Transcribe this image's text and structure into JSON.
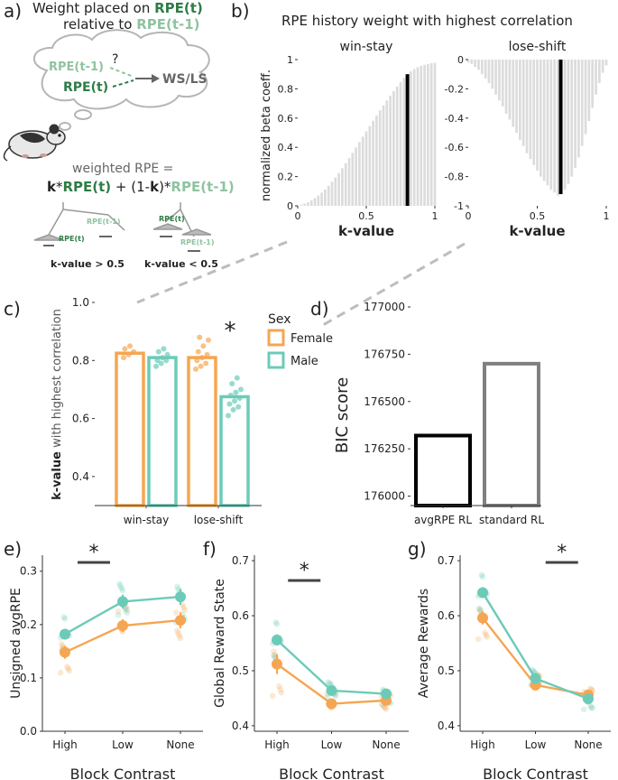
{
  "colors": {
    "female": "#F5A652",
    "male": "#6CCBB8",
    "history_bar": "#dcdcdc",
    "best_k": "#000000",
    "rpe_dark": "#2e7d45",
    "rpe_light": "#8fc3a0",
    "avg_rl": "#000000",
    "std_rl": "#808080"
  },
  "panel_a": {
    "label": "a)",
    "title_line1_pre": "Weight placed on ",
    "title_line1_hl": "RPE(t)",
    "title_line2_pre": "relative to ",
    "title_line2_hl": "RPE(t-1)",
    "cloud_rpe_t1": "RPE(t-1)",
    "cloud_question": "?",
    "cloud_rpe_t": "RPE(t)",
    "cloud_target": "WS/LS",
    "formula_line1": "weighted RPE =",
    "f_k1": "k",
    "f_star1": "*",
    "f_rpet": "RPE(t)",
    "f_mid": " + (1-",
    "f_k2": "k",
    "f_close": ")*",
    "f_rpet1": "RPE(t-1)",
    "scale_left_top": "RPE(t-1)",
    "scale_left_bottom": "RPE(t)",
    "scale_right_top": "RPE(t)",
    "scale_right_bottom": "RPE(t-1)",
    "k_gt": "k-value > 0.5",
    "k_lt": "k-value < 0.5"
  },
  "panel_b": {
    "label": "b)",
    "title": "RPE history weight with highest correlation",
    "ylabel": "normalized beta coeff."
  },
  "panel_c": {
    "label": "c)",
    "ylabel_bold": "k-value",
    "ylabel_rest": " with highest correlation",
    "legend_title": "Sex",
    "star": "*"
  },
  "panel_d": {
    "label": "d)",
    "ylabel": "BIC score"
  },
  "panel_e": {
    "label": "e)",
    "star": "*"
  },
  "panel_f": {
    "label": "f)",
    "star": "*"
  },
  "panel_g": {
    "label": "g)",
    "star": "*"
  },
  "chart_data": [
    {
      "id": "b_winstay",
      "type": "bar",
      "title": "win-stay",
      "xlabel": "k-value",
      "ylabel": "normalized beta coeff.",
      "xlim": [
        0,
        1
      ],
      "ylim": [
        0,
        1
      ],
      "xticks": [
        "0",
        "0.5",
        "1"
      ],
      "yticks": [
        "0",
        "0.2",
        "0.4",
        "0.6",
        "0.8",
        "1"
      ],
      "best_k": 0.8,
      "x": [
        0.0,
        0.025,
        0.05,
        0.075,
        0.1,
        0.125,
        0.15,
        0.175,
        0.2,
        0.225,
        0.25,
        0.275,
        0.3,
        0.325,
        0.35,
        0.375,
        0.4,
        0.425,
        0.45,
        0.475,
        0.5,
        0.525,
        0.55,
        0.575,
        0.6,
        0.625,
        0.65,
        0.675,
        0.7,
        0.725,
        0.75,
        0.775,
        0.8,
        0.825,
        0.85,
        0.875,
        0.9,
        0.925,
        0.95,
        0.975,
        1.0
      ],
      "values": [
        0.0,
        0.007,
        0.015,
        0.025,
        0.038,
        0.053,
        0.07,
        0.09,
        0.112,
        0.137,
        0.164,
        0.193,
        0.224,
        0.257,
        0.291,
        0.326,
        0.362,
        0.399,
        0.436,
        0.473,
        0.509,
        0.545,
        0.581,
        0.617,
        0.652,
        0.686,
        0.72,
        0.753,
        0.785,
        0.816,
        0.846,
        0.875,
        0.9,
        0.92,
        0.935,
        0.948,
        0.957,
        0.964,
        0.97,
        0.975,
        0.978
      ]
    },
    {
      "id": "b_loseshift",
      "type": "bar",
      "title": "lose-shift",
      "xlabel": "k-value",
      "ylabel": "",
      "xlim": [
        0,
        1
      ],
      "ylim": [
        -1,
        0
      ],
      "xticks": [
        "0",
        "0.5",
        "1"
      ],
      "yticks": [
        "0",
        "-0.2",
        "-0.4",
        "-0.6",
        "-0.8",
        "-1"
      ],
      "best_k": 0.67,
      "x": [
        0.0,
        0.025,
        0.05,
        0.075,
        0.1,
        0.125,
        0.15,
        0.175,
        0.2,
        0.225,
        0.25,
        0.275,
        0.3,
        0.325,
        0.35,
        0.375,
        0.4,
        0.425,
        0.45,
        0.475,
        0.5,
        0.525,
        0.55,
        0.575,
        0.6,
        0.625,
        0.65,
        0.675,
        0.7,
        0.725,
        0.75,
        0.775,
        0.8,
        0.825,
        0.85,
        0.875,
        0.9,
        0.925,
        0.95,
        0.975,
        1.0
      ],
      "values": [
        -0.02,
        -0.03,
        -0.05,
        -0.07,
        -0.1,
        -0.13,
        -0.16,
        -0.2,
        -0.24,
        -0.28,
        -0.32,
        -0.37,
        -0.41,
        -0.46,
        -0.5,
        -0.55,
        -0.59,
        -0.64,
        -0.68,
        -0.72,
        -0.76,
        -0.8,
        -0.83,
        -0.86,
        -0.89,
        -0.91,
        -0.93,
        -0.92,
        -0.89,
        -0.85,
        -0.8,
        -0.74,
        -0.67,
        -0.59,
        -0.51,
        -0.42,
        -0.33,
        -0.24,
        -0.16,
        -0.09,
        -0.04
      ]
    },
    {
      "id": "c",
      "type": "bar",
      "categories": [
        "win-stay",
        "lose-shift"
      ],
      "ylim": [
        0.3,
        1.0
      ],
      "yticks": [
        "0.4",
        "0.6",
        "0.8",
        "1.0"
      ],
      "legend": {
        "title": "Sex",
        "entries": [
          "Female",
          "Male"
        ]
      },
      "series": [
        {
          "name": "Female",
          "values": [
            0.825,
            0.81
          ],
          "points": [
            [
              0.81,
              0.82,
              0.83,
              0.84,
              0.85
            ],
            [
              0.77,
              0.78,
              0.79,
              0.8,
              0.81,
              0.82,
              0.83,
              0.85,
              0.87,
              0.88
            ]
          ]
        },
        {
          "name": "Male",
          "values": [
            0.81,
            0.675
          ],
          "points": [
            [
              0.78,
              0.79,
              0.8,
              0.8,
              0.81,
              0.82,
              0.83,
              0.84
            ],
            [
              0.61,
              0.63,
              0.64,
              0.65,
              0.66,
              0.67,
              0.68,
              0.69,
              0.7,
              0.72,
              0.74
            ]
          ]
        }
      ],
      "significance": {
        "category": "lose-shift",
        "label": "*"
      }
    },
    {
      "id": "d",
      "type": "bar",
      "ylabel": "BIC score",
      "categories": [
        "avgRPE RL",
        "standard RL"
      ],
      "values": [
        176320,
        176700
      ],
      "ylim": [
        175950,
        177000
      ],
      "yticks": [
        "176000",
        "176250",
        "176500",
        "176750",
        "177000"
      ]
    },
    {
      "id": "e",
      "type": "line",
      "xlabel": "Block Contrast",
      "ylabel": "Unsigned avgRPE",
      "categories": [
        "High",
        "Low",
        "None"
      ],
      "ylim": [
        0.0,
        0.33
      ],
      "yticks": [
        "0.0",
        "0.1",
        "0.2",
        "0.3"
      ],
      "series": [
        {
          "name": "Female",
          "values": [
            0.148,
            0.198,
            0.208
          ],
          "errors": [
            0.012,
            0.012,
            0.015
          ]
        },
        {
          "name": "Male",
          "values": [
            0.182,
            0.243,
            0.252
          ],
          "errors": [
            0.01,
            0.013,
            0.015
          ]
        }
      ],
      "significance": {
        "between": [
          "High",
          "Low"
        ],
        "label": "*"
      }
    },
    {
      "id": "f",
      "type": "line",
      "xlabel": "Block Contrast",
      "ylabel": "Global Reward State",
      "categories": [
        "High",
        "Low",
        "None"
      ],
      "ylim": [
        0.39,
        0.71
      ],
      "yticks": [
        "0.4",
        "0.5",
        "0.6",
        "0.7"
      ],
      "series": [
        {
          "name": "Female",
          "values": [
            0.512,
            0.44,
            0.446
          ],
          "errors": [
            0.018,
            0.008,
            0.007
          ]
        },
        {
          "name": "Male",
          "values": [
            0.556,
            0.464,
            0.458
          ],
          "errors": [
            0.01,
            0.006,
            0.006
          ]
        }
      ],
      "significance": {
        "between": [
          "High",
          "Low"
        ],
        "label": "*"
      }
    },
    {
      "id": "g",
      "type": "line",
      "xlabel": "Block Contrast",
      "ylabel": "Average Rewards",
      "categories": [
        "High",
        "Low",
        "None"
      ],
      "ylim": [
        0.39,
        0.71
      ],
      "yticks": [
        "0.4",
        "0.5",
        "0.6",
        "0.7"
      ],
      "series": [
        {
          "name": "Female",
          "values": [
            0.596,
            0.474,
            0.456
          ],
          "errors": [
            0.012,
            0.006,
            0.006
          ]
        },
        {
          "name": "Male",
          "values": [
            0.642,
            0.486,
            0.449
          ],
          "errors": [
            0.01,
            0.006,
            0.006
          ]
        }
      ],
      "significance": {
        "between": [
          "Low",
          "None"
        ],
        "label": "*"
      }
    }
  ]
}
